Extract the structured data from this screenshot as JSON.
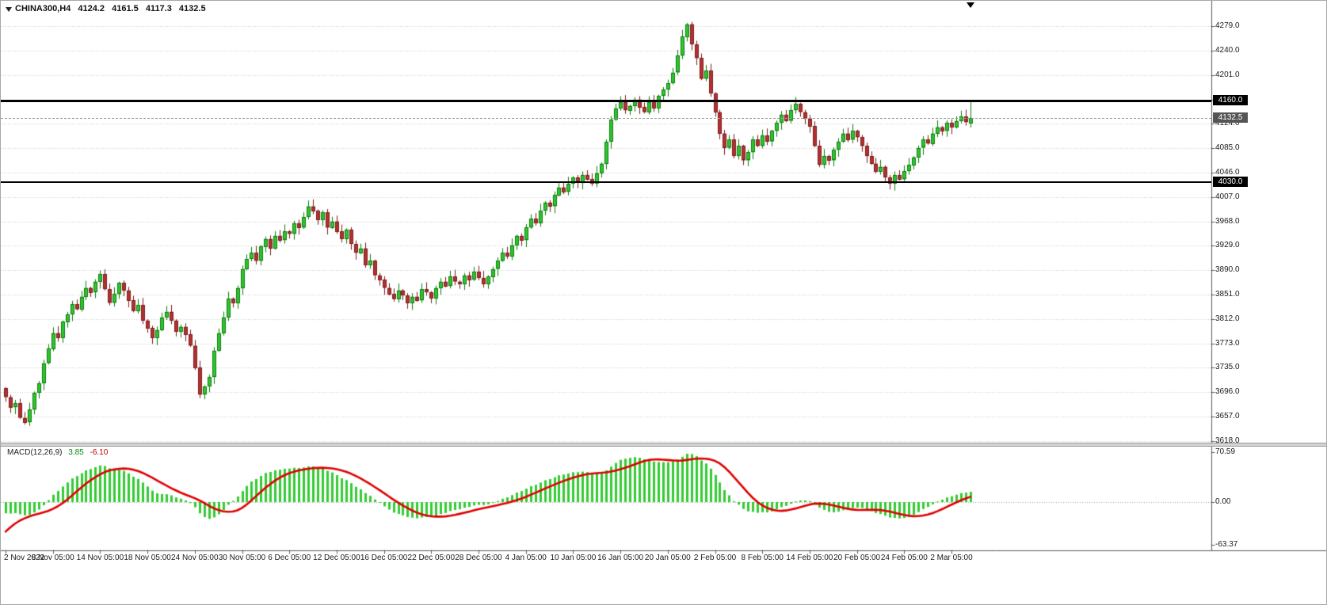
{
  "header": {
    "symbol": "CHINA300,H4",
    "ohlc": {
      "open": "4124.2",
      "high": "4161.5",
      "low": "4117.3",
      "close": "4132.5"
    }
  },
  "colors": {
    "background": "#ffffff",
    "grid": "#c9c9c9",
    "bull": "#2ec62e",
    "bull_border": "#0e7a0e",
    "bear": "#b53030",
    "bear_border": "#7a1d1d",
    "macd_hist": "#33cc33",
    "macd_signal": "#e00000",
    "hline": "#000000",
    "hline_badge_bg": "#000000",
    "current_badge_bg": "#555555",
    "axis_text": "#1a1a1a"
  },
  "chart_data": [
    {
      "type": "candlestick",
      "title": "CHINA300,H4",
      "timeframe": "H4",
      "bars": 205,
      "first_open": 3702,
      "closes": [
        3688,
        3672,
        3678,
        3655,
        3648,
        3668,
        3695,
        3710,
        3742,
        3765,
        3790,
        3782,
        3808,
        3820,
        3836,
        3828,
        3848,
        3862,
        3855,
        3872,
        3884,
        3860,
        3838,
        3852,
        3870,
        3858,
        3842,
        3825,
        3835,
        3810,
        3798,
        3782,
        3795,
        3815,
        3824,
        3810,
        3792,
        3800,
        3788,
        3770,
        3735,
        3692,
        3705,
        3720,
        3762,
        3790,
        3815,
        3845,
        3838,
        3862,
        3892,
        3908,
        3918,
        3905,
        3928,
        3940,
        3925,
        3945,
        3938,
        3952,
        3948,
        3965,
        3958,
        3975,
        3992,
        3985,
        3970,
        3982,
        3958,
        3968,
        3952,
        3940,
        3955,
        3932,
        3918,
        3925,
        3898,
        3905,
        3882,
        3875,
        3862,
        3852,
        3844,
        3858,
        3850,
        3838,
        3848,
        3842,
        3860,
        3855,
        3845,
        3862,
        3872,
        3865,
        3880,
        3872,
        3868,
        3882,
        3875,
        3888,
        3878,
        3868,
        3880,
        3892,
        3905,
        3918,
        3912,
        3930,
        3945,
        3938,
        3958,
        3972,
        3965,
        3985,
        3998,
        3992,
        4010,
        4022,
        4015,
        4028,
        4038,
        4030,
        4042,
        4035,
        4028,
        4045,
        4060,
        4095,
        4130,
        4148,
        4158,
        4145,
        4152,
        4162,
        4150,
        4142,
        4158,
        4148,
        4168,
        4178,
        4188,
        4205,
        4232,
        4262,
        4282,
        4250,
        4228,
        4195,
        4208,
        4172,
        4142,
        4108,
        4085,
        4098,
        4072,
        4088,
        4065,
        4078,
        4098,
        4088,
        4105,
        4095,
        4112,
        4125,
        4138,
        4128,
        4145,
        4155,
        4142,
        4132,
        4120,
        4088,
        4058,
        4072,
        4065,
        4082,
        4095,
        4108,
        4098,
        4112,
        4102,
        4088,
        4072,
        4060,
        4048,
        4055,
        4038,
        4028,
        4042,
        4035,
        4048,
        4058,
        4070,
        4085,
        4098,
        4092,
        4108,
        4118,
        4112,
        4125,
        4118,
        4128,
        4135,
        4126,
        4132.5
      ],
      "last_bar": {
        "open": 4124.2,
        "high": 4161.5,
        "low": 4117.3,
        "close": 4132.5
      },
      "ylim": [
        3618,
        4279
      ],
      "grid": "horizontal-dotted",
      "y_ticks": [
        {
          "text": "4279.0",
          "price": 4279
        },
        {
          "text": "4240.0",
          "price": 4240
        },
        {
          "text": "4201.0",
          "price": 4201
        },
        {
          "text": "4162.0",
          "price": 4162
        },
        {
          "text": "4124.0",
          "price": 4124
        },
        {
          "text": "4085.0",
          "price": 4085
        },
        {
          "text": "4046.0",
          "price": 4046
        },
        {
          "text": "4007.0",
          "price": 4007
        },
        {
          "text": "3968.0",
          "price": 3968
        },
        {
          "text": "3929.0",
          "price": 3929
        },
        {
          "text": "3890.0",
          "price": 3890
        },
        {
          "text": "3851.0",
          "price": 3851
        },
        {
          "text": "3812.0",
          "price": 3812
        },
        {
          "text": "3773.0",
          "price": 3773
        },
        {
          "text": "3735.0",
          "price": 3735
        },
        {
          "text": "3696.0",
          "price": 3696
        },
        {
          "text": "3657.0",
          "price": 3657
        },
        {
          "text": "3618.0",
          "price": 3618
        }
      ],
      "x_ticks": [
        {
          "text": "2 Nov 2022",
          "bar": 0
        },
        {
          "text": "8 Nov 05:00",
          "bar": 10
        },
        {
          "text": "14 Nov 05:00",
          "bar": 20
        },
        {
          "text": "18 Nov 05:00",
          "bar": 30
        },
        {
          "text": "24 Nov 05:00",
          "bar": 40
        },
        {
          "text": "30 Nov 05:00",
          "bar": 50
        },
        {
          "text": "6 Dec 05:00",
          "bar": 60
        },
        {
          "text": "12 Dec 05:00",
          "bar": 70
        },
        {
          "text": "16 Dec 05:00",
          "bar": 80
        },
        {
          "text": "22 Dec 05:00",
          "bar": 90
        },
        {
          "text": "28 Dec 05:00",
          "bar": 100
        },
        {
          "text": "4 Jan 05:00",
          "bar": 110
        },
        {
          "text": "10 Jan 05:00",
          "bar": 120
        },
        {
          "text": "16 Jan 05:00",
          "bar": 130
        },
        {
          "text": "20 Jan 05:00",
          "bar": 140
        },
        {
          "text": "2 Feb 05:00",
          "bar": 150
        },
        {
          "text": "8 Feb 05:00",
          "bar": 160
        },
        {
          "text": "14 Feb 05:00",
          "bar": 170
        },
        {
          "text": "20 Feb 05:00",
          "bar": 180
        },
        {
          "text": "24 Feb 05:00",
          "bar": 190
        },
        {
          "text": "2 Mar 05:00",
          "bar": 200
        }
      ],
      "hlines": [
        {
          "price": 4160,
          "label": "4160.0",
          "color": "#000000"
        },
        {
          "price": 4030,
          "label": "4030.0",
          "color": "#000000"
        }
      ],
      "current_price": {
        "value": 4132.5,
        "label": "4132.5"
      }
    },
    {
      "type": "bar+line",
      "name": "MACD(12,26,9)",
      "params": {
        "fast": 12,
        "slow": 26,
        "signal": 9
      },
      "display_values": {
        "macd": "3.85",
        "signal": "-6.10"
      },
      "scale": {
        "max": "70.59",
        "zero": "0.00",
        "min": "-63.37"
      },
      "derived": "histogram = EMA12-EMA26 of candlestick closes; red line = 9-period average",
      "legend_position": "top-left"
    }
  ]
}
